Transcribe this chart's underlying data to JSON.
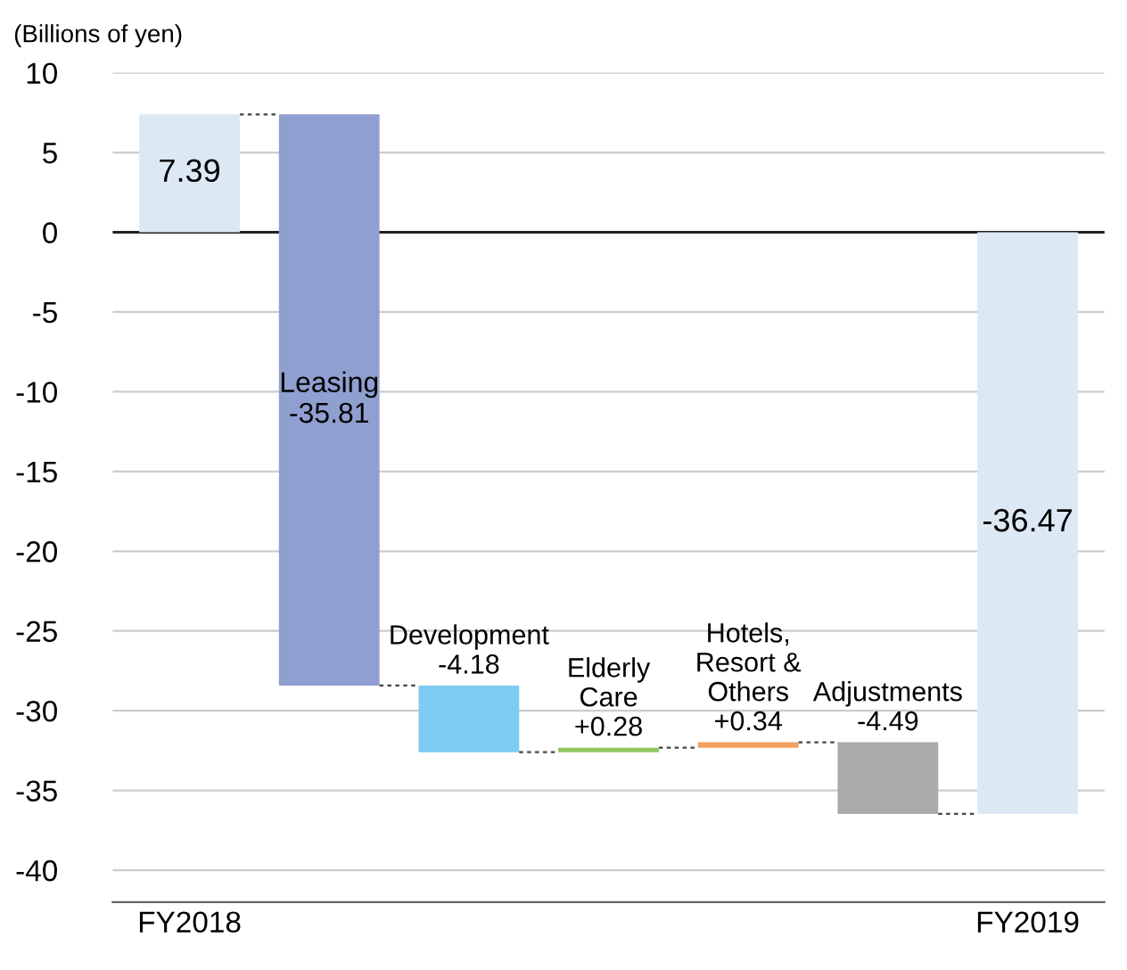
{
  "chart_data": {
    "type": "bar",
    "ylabel": "(Billions of yen)",
    "categories": [
      "FY2018",
      null,
      null,
      null,
      null,
      null,
      "FY2019"
    ],
    "values": [
      7.39,
      -35.81,
      -4.18,
      0.28,
      0.34,
      -4.49,
      -36.47
    ],
    "base": [
      0,
      7.39,
      -28.42,
      -32.6,
      -32.32,
      -31.98,
      0
    ],
    "colors": [
      "#dde8f5",
      "#8f9fd0",
      "#7ccbf0",
      "#8dc85a",
      "#f0a060",
      "#aaaaaa",
      "#dde8f5"
    ],
    "value_labels": [
      "7.39",
      "Leasing\n-35.81",
      "Development\n-4.18",
      "Elderly\nCare\n+0.28",
      "Hotels,\nResort &\nOthers\n+0.34",
      "Adjustments\n-4.49",
      "-36.47"
    ],
    "ylim": [
      -42,
      10
    ],
    "yticks": [
      -40,
      -35,
      -30,
      -25,
      -20,
      -15,
      -10,
      -5,
      0,
      5,
      10
    ],
    "grid": "y",
    "legend": false
  }
}
